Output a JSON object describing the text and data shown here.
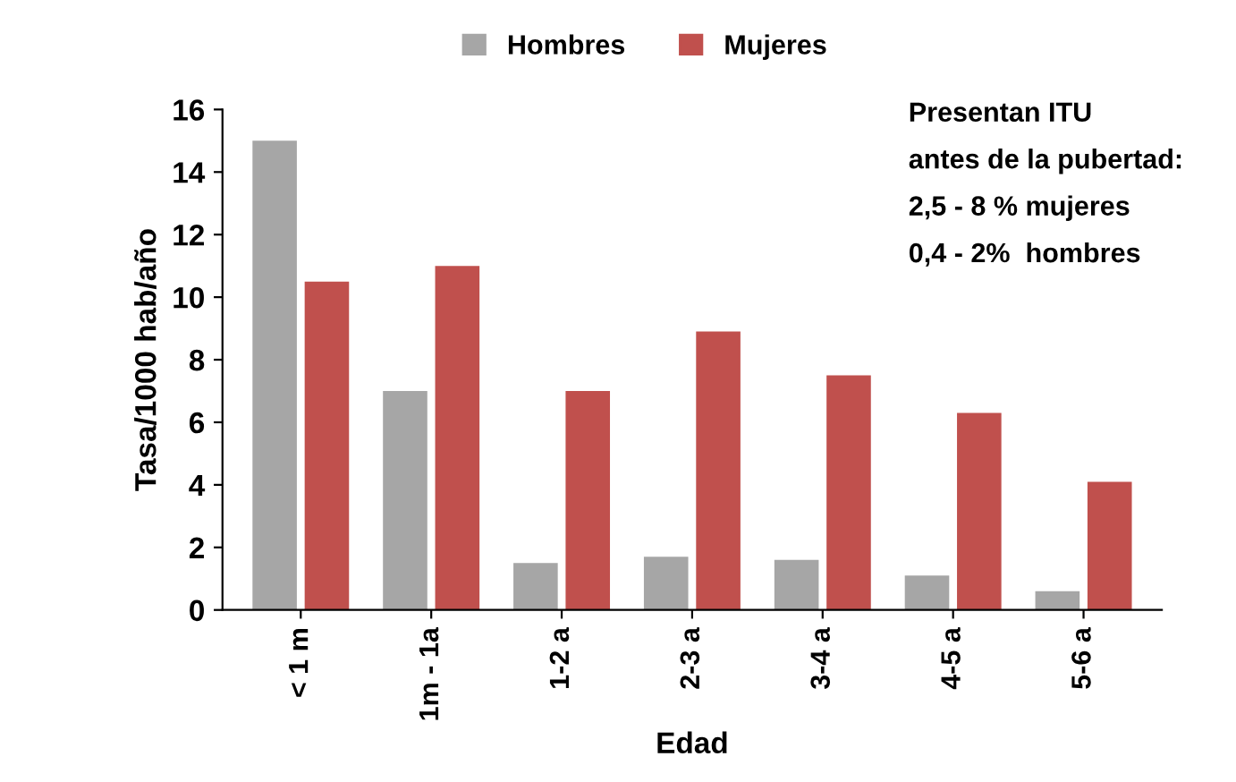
{
  "chart_data": {
    "type": "bar",
    "xlabel": "Edad",
    "ylabel": "Tasa/1000 hab/año",
    "categories": [
      "< 1 m",
      "1m - 1a",
      "1-2 a",
      "2-3 a",
      "3-4 a",
      "4-5 a",
      "5-6 a"
    ],
    "series": [
      {
        "name": "Hombres",
        "color": "#a6a6a6",
        "values": [
          15,
          7,
          1.5,
          1.7,
          1.6,
          1.1,
          0.6
        ]
      },
      {
        "name": "Mujeres",
        "color": "#c0504d",
        "values": [
          10.5,
          11,
          7,
          8.9,
          7.5,
          6.3,
          4.1
        ]
      }
    ],
    "ylim": [
      0,
      16
    ],
    "yticks": [
      0,
      2,
      4,
      6,
      8,
      10,
      12,
      14,
      16
    ],
    "legend": "top",
    "grid": false,
    "annotations": [
      "Presentan ITU",
      "antes de la pubertad:",
      "2,5 - 8 % mujeres",
      "0,4 - 2%  hombres"
    ]
  }
}
